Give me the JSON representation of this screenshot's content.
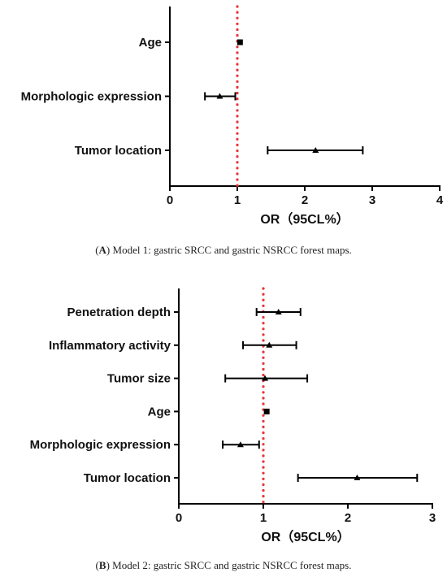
{
  "chart_data": [
    {
      "type": "forest",
      "panel": "A",
      "caption_letter": "A",
      "caption_text": "Model 1: gastric SRCC and gastric NSRCC forest maps.",
      "xlabel": "OR（95CL%）",
      "xlim": [
        0,
        4
      ],
      "xticks": [
        0,
        1,
        2,
        3,
        4
      ],
      "reference_line": 1,
      "rows": [
        {
          "label": "Age",
          "or": 1.04,
          "lo": 1.02,
          "hi": 1.06,
          "marker": "square"
        },
        {
          "label": "Morphologic expression",
          "or": 0.74,
          "lo": 0.52,
          "hi": 0.97,
          "marker": "triangle"
        },
        {
          "label": "Tumor location",
          "or": 2.16,
          "lo": 1.45,
          "hi": 2.86,
          "marker": "triangle"
        }
      ]
    },
    {
      "type": "forest",
      "panel": "B",
      "caption_letter": "B",
      "caption_text": "Model 2: gastric SRCC and gastric NSRCC forest maps.",
      "xlabel": "OR（95CL%）",
      "xlim": [
        0,
        3
      ],
      "xticks": [
        0,
        1,
        2,
        3
      ],
      "reference_line": 1,
      "rows": [
        {
          "label": "Penetration depth",
          "or": 1.18,
          "lo": 0.92,
          "hi": 1.44,
          "marker": "triangle"
        },
        {
          "label": "Inflammatory activity",
          "or": 1.07,
          "lo": 0.76,
          "hi": 1.39,
          "marker": "triangle"
        },
        {
          "label": "Tumor size",
          "or": 1.02,
          "lo": 0.55,
          "hi": 1.52,
          "marker": "triangle"
        },
        {
          "label": "Age",
          "or": 1.04,
          "lo": 1.02,
          "hi": 1.06,
          "marker": "square"
        },
        {
          "label": "Morphologic expression",
          "or": 0.73,
          "lo": 0.52,
          "hi": 0.95,
          "marker": "triangle"
        },
        {
          "label": "Tumor location",
          "or": 2.11,
          "lo": 1.41,
          "hi": 2.82,
          "marker": "triangle"
        }
      ]
    }
  ]
}
